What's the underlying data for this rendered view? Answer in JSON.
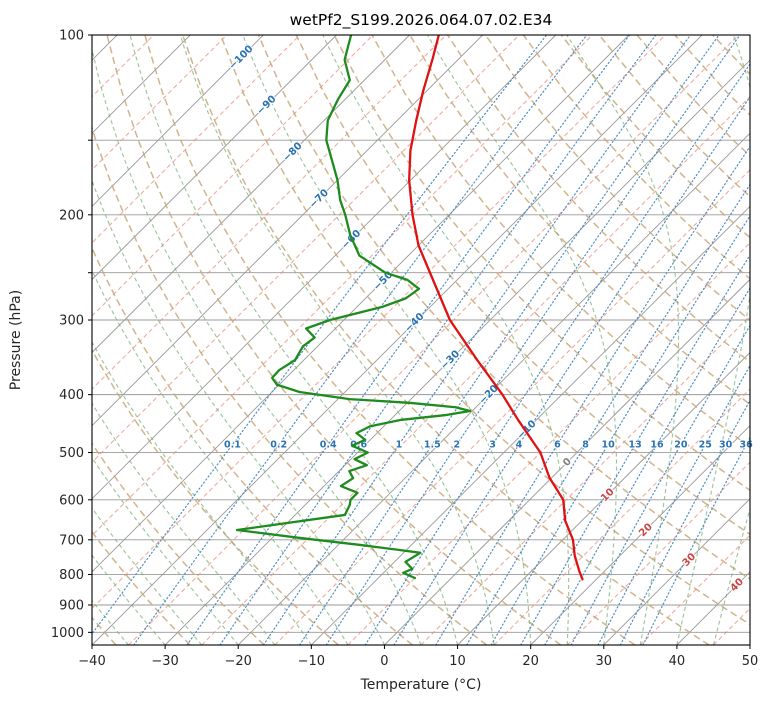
{
  "chart_data": {
    "type": "line",
    "subtype": "skewt-log-p",
    "title": "wetPf2_S199.2026.064.07.02.E34",
    "xlabel": "Temperature (°C)",
    "ylabel": "Pressure (hPa)",
    "xlim": [
      -40,
      50
    ],
    "pressure_lim": [
      1050,
      100
    ],
    "skew_deg": 45,
    "x_ticks": [
      -40,
      -30,
      -20,
      -10,
      0,
      10,
      20,
      30,
      40,
      50
    ],
    "pressure_ticks": [
      100,
      200,
      300,
      400,
      500,
      600,
      700,
      800,
      900,
      1000
    ],
    "pressure_gridlines": [
      100,
      150,
      200,
      250,
      300,
      400,
      500,
      600,
      700,
      800,
      900,
      1000
    ],
    "isotherms": {
      "start": -120,
      "end": 50,
      "step": 10
    },
    "isotherm_minor": {
      "start": -115,
      "end": 45,
      "step": 10
    },
    "isotherm_labels": [
      {
        "t": -100,
        "p": 109
      },
      {
        "t": -90,
        "p": 131
      },
      {
        "t": -80,
        "p": 157
      },
      {
        "t": -70,
        "p": 188
      },
      {
        "t": -60,
        "p": 220
      },
      {
        "t": -50,
        "p": 258
      },
      {
        "t": -40,
        "p": 303
      },
      {
        "t": -30,
        "p": 350
      },
      {
        "t": -20,
        "p": 400
      },
      {
        "t": -10,
        "p": 458
      },
      {
        "t": 0,
        "p": 519
      },
      {
        "t": 10,
        "p": 589
      },
      {
        "t": 20,
        "p": 674
      },
      {
        "t": 30,
        "p": 756
      },
      {
        "t": 40,
        "p": 833
      }
    ],
    "dry_adiabats": {
      "start_c": -40,
      "end_c": 190,
      "step": 10
    },
    "moist_adiabats": {
      "start_c": -40,
      "end_c": 45,
      "step": 5
    },
    "mixing_ratios": [
      0.1,
      0.2,
      0.4,
      0.6,
      1,
      1.5,
      2,
      3,
      4,
      6,
      8,
      10,
      13,
      16,
      20,
      25,
      30,
      36
    ],
    "mixing_label_pressure": 485,
    "series": [
      {
        "name": "temperature",
        "color": "#e01111",
        "points": [
          [
            100,
            -76
          ],
          [
            110,
            -73.5
          ],
          [
            124,
            -70.5
          ],
          [
            139,
            -67.4
          ],
          [
            156,
            -64.1
          ],
          [
            175,
            -60.2
          ],
          [
            200,
            -55
          ],
          [
            225,
            -50
          ],
          [
            257,
            -43.3
          ],
          [
            300,
            -35.5
          ],
          [
            350,
            -26.3
          ],
          [
            400,
            -18.1
          ],
          [
            441,
            -12.5
          ],
          [
            500,
            -5
          ],
          [
            551,
            -0.3
          ],
          [
            600,
            4.6
          ],
          [
            650,
            7.7
          ],
          [
            700,
            11.4
          ],
          [
            744,
            13.8
          ],
          [
            789,
            16.5
          ],
          [
            815,
            18.1
          ]
        ]
      },
      {
        "name": "dewpoint",
        "color": "#1e8b1e",
        "points": [
          [
            100,
            -88
          ],
          [
            110,
            -85.5
          ],
          [
            119,
            -82
          ],
          [
            128,
            -81
          ],
          [
            139,
            -79.5
          ],
          [
            150,
            -77
          ],
          [
            162,
            -73.5
          ],
          [
            175,
            -70
          ],
          [
            189,
            -66.9
          ],
          [
            200,
            -64.2
          ],
          [
            216,
            -60.8
          ],
          [
            234,
            -56.7
          ],
          [
            250,
            -50.8
          ],
          [
            257,
            -46.8
          ],
          [
            266,
            -44
          ],
          [
            276,
            -44.5
          ],
          [
            285,
            -46.5
          ],
          [
            300,
            -51.9
          ],
          [
            310,
            -54
          ],
          [
            321,
            -51.6
          ],
          [
            332,
            -52
          ],
          [
            350,
            -51.2
          ],
          [
            364,
            -52
          ],
          [
            375,
            -51.9
          ],
          [
            385,
            -50.3
          ],
          [
            396,
            -46.2
          ],
          [
            407,
            -38.4
          ],
          [
            413,
            -29.5
          ],
          [
            420,
            -22.8
          ],
          [
            426,
            -20.3
          ],
          [
            433,
            -23.2
          ],
          [
            441,
            -28.6
          ],
          [
            452,
            -31.9
          ],
          [
            464,
            -32.8
          ],
          [
            476,
            -30.7
          ],
          [
            487,
            -31.7
          ],
          [
            500,
            -28.6
          ],
          [
            513,
            -29.5
          ],
          [
            525,
            -27
          ],
          [
            537,
            -28.6
          ],
          [
            552,
            -27.1
          ],
          [
            569,
            -27.7
          ],
          [
            584,
            -24.5
          ],
          [
            600,
            -24.5
          ],
          [
            612,
            -23.9
          ],
          [
            636,
            -23.2
          ],
          [
            674,
            -35.9
          ],
          [
            695,
            -26.2
          ],
          [
            714,
            -17
          ],
          [
            728,
            -10.9
          ],
          [
            736,
            -7.7
          ],
          [
            762,
            -8.5
          ],
          [
            783,
            -6.6
          ],
          [
            795,
            -7.3
          ],
          [
            811,
            -5
          ]
        ]
      }
    ],
    "colors": {
      "grid": "#999999",
      "isotherm": "#999999",
      "isotherm_minor": "#ed8a76",
      "dry_adiabat": "#c9a878",
      "moist_adiabat": "#74ad74",
      "mixing": "#4889c4",
      "mixing_label": "#2a72b2",
      "label_neg": "#2a72b2",
      "label_zero": "#7f7f7f",
      "label_pos": "#cc4444",
      "axis": "#000000"
    }
  }
}
